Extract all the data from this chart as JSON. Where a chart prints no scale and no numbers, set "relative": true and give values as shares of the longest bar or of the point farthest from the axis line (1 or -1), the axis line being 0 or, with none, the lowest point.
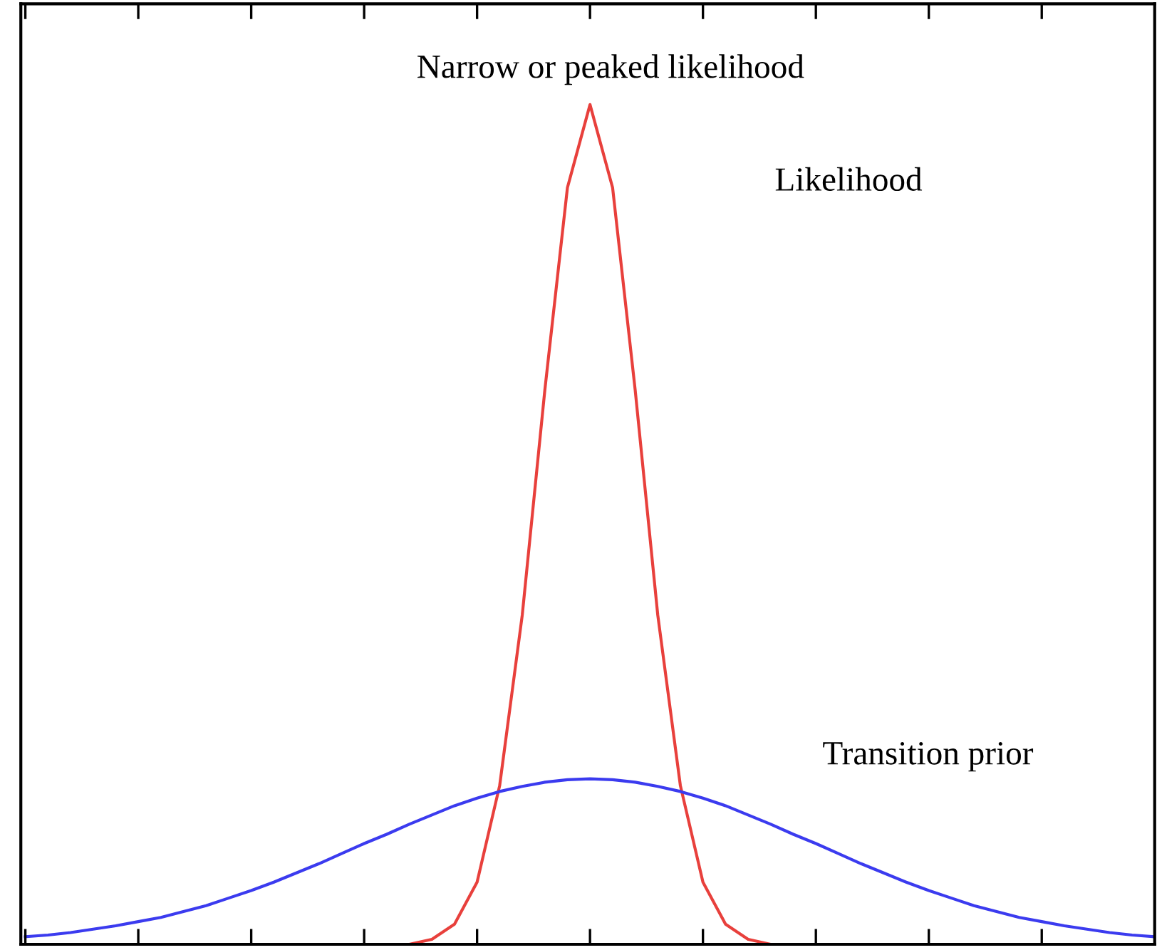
{
  "chart_data": {
    "type": "line",
    "relative": true,
    "categories": [
      null,
      null,
      null,
      null,
      null,
      null,
      null,
      null,
      null,
      null,
      null,
      null,
      null,
      null,
      null,
      null,
      null,
      null,
      null,
      null,
      null,
      null,
      null,
      null,
      null,
      null,
      null,
      null,
      null,
      null,
      null,
      null,
      null,
      null,
      null,
      null,
      null,
      null,
      null,
      null,
      null,
      null,
      null,
      null,
      null,
      null,
      null,
      null,
      null,
      null,
      null
    ],
    "grid": false,
    "series": [
      {
        "color": "#e8403c",
        "values": [
          null,
          null,
          null,
          null,
          null,
          null,
          null,
          null,
          null,
          null,
          null,
          null,
          null,
          null,
          null,
          null,
          null,
          0,
          0.006,
          0.024,
          0.074,
          0.189,
          0.392,
          0.66,
          0.901,
          1,
          0.901,
          0.66,
          0.392,
          0.189,
          0.074,
          0.024,
          0.006,
          0,
          null,
          null,
          null,
          null,
          null,
          null,
          null,
          null,
          null,
          null,
          null,
          null,
          null,
          null,
          null,
          null,
          null
        ]
      },
      {
        "color": "#3b3bef",
        "values": [
          0.009,
          0.011,
          0.014,
          0.018,
          0.022,
          0.027,
          0.032,
          0.039,
          0.046,
          0.055,
          0.064,
          0.074,
          0.085,
          0.096,
          0.108,
          0.12,
          0.131,
          0.143,
          0.154,
          0.165,
          0.174,
          0.182,
          0.188,
          0.193,
          0.196,
          0.197,
          0.196,
          0.193,
          0.188,
          0.182,
          0.174,
          0.165,
          0.154,
          0.143,
          0.131,
          0.12,
          0.108,
          0.096,
          0.085,
          0.074,
          0.064,
          0.055,
          0.046,
          0.039,
          0.032,
          0.027,
          0.022,
          0.018,
          0.014,
          0.011,
          0.009
        ]
      }
    ],
    "annotations": [
      "Narrow or peaked likelihood",
      "Likelihood",
      "Transition prior"
    ]
  }
}
